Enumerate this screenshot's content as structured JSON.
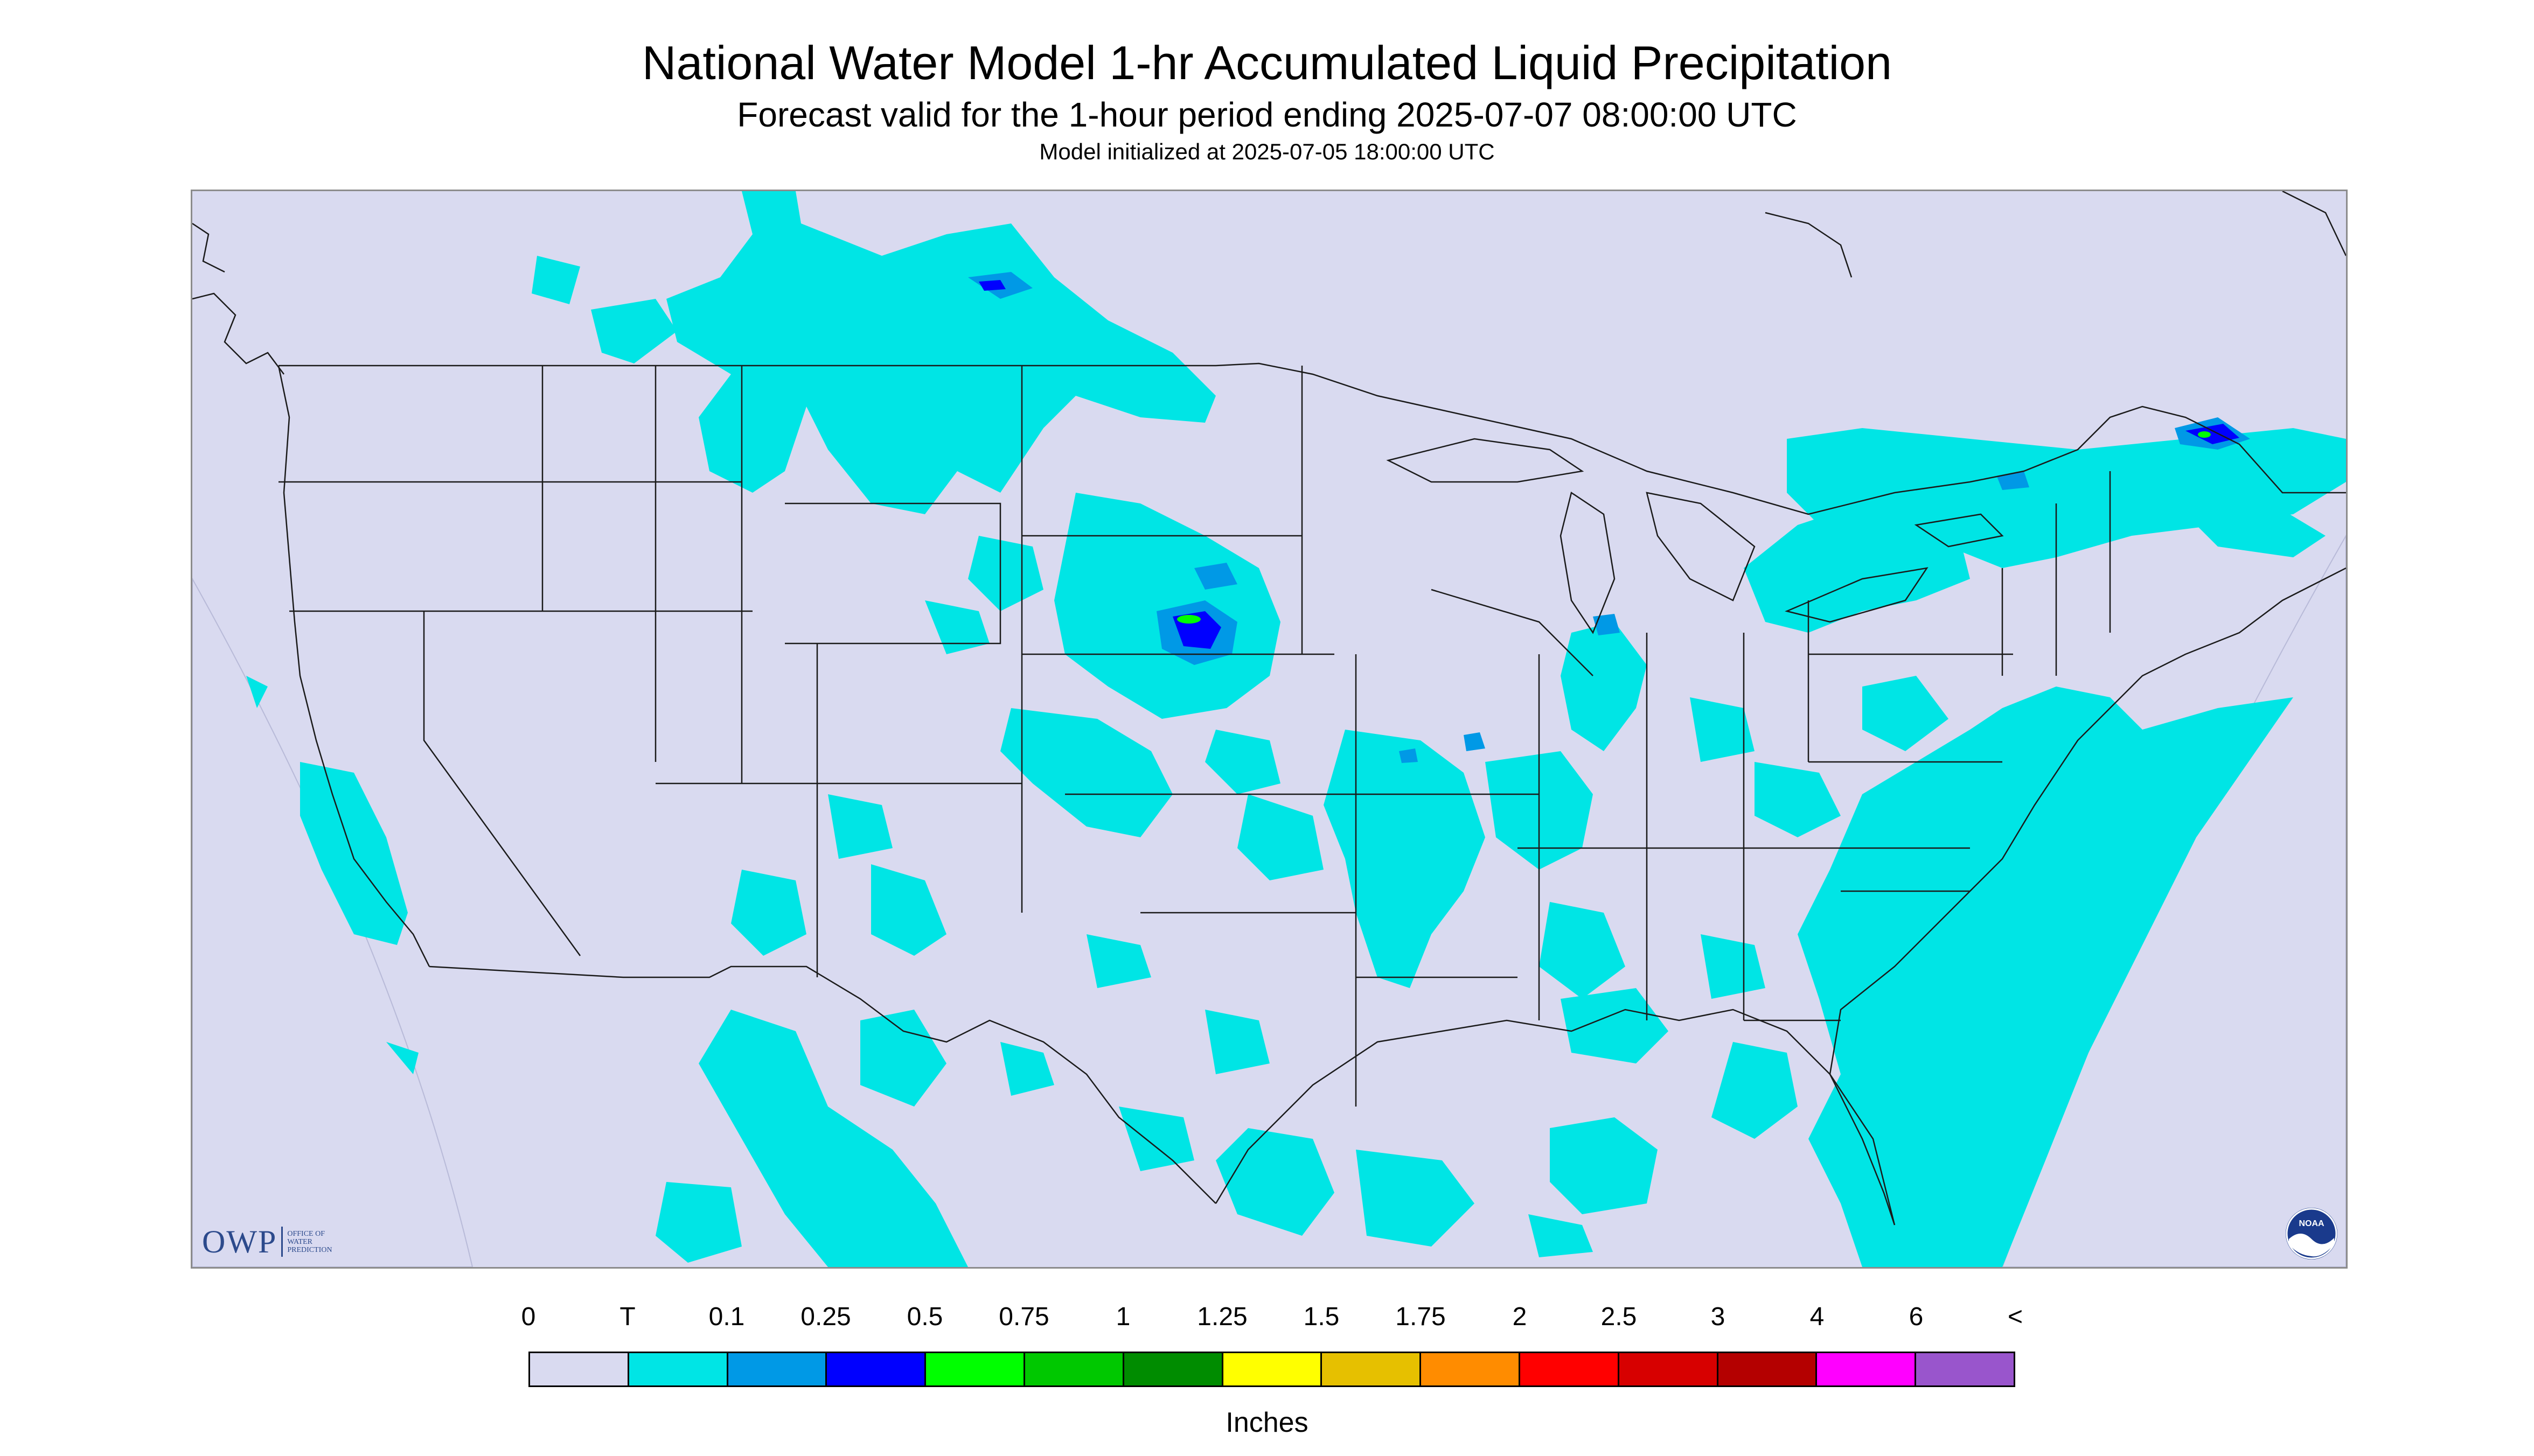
{
  "header": {
    "title": "National Water Model 1-hr Accumulated Liquid Precipitation",
    "subtitle": "Forecast valid for the 1-hour period ending 2025-07-07 08:00:00 UTC",
    "init": "Model initialized at 2025-07-05 18:00:00 UTC"
  },
  "map": {
    "background_color": "#d9daf0",
    "land_color": "#d9daf0",
    "outside_color": "#d9daf0",
    "border_color": "#1a1a1a",
    "precip_light_color": "#00e5e5",
    "precip_mid_color": "#0099e6",
    "precip_heavy_color": "#0000ff",
    "precip_green_color": "#00ff00"
  },
  "logos": {
    "owp_text": "OWP",
    "owp_office": [
      "OFFICE OF",
      "WATER",
      "PREDICTION"
    ],
    "noaa_text": "NOAA"
  },
  "legend": {
    "labels": [
      "0",
      "T",
      "0.1",
      "0.25",
      "0.5",
      "0.75",
      "1",
      "1.25",
      "1.5",
      "1.75",
      "2",
      "2.5",
      "3",
      "4",
      "6",
      "<"
    ],
    "colors": [
      "#d9daf0",
      "#00e5e5",
      "#0099e6",
      "#0000ff",
      "#00ff00",
      "#00c800",
      "#008c00",
      "#ffff00",
      "#e6c000",
      "#ff8c00",
      "#ff0000",
      "#d70000",
      "#b40000",
      "#ff00ff",
      "#9955cc"
    ],
    "units": "Inches"
  }
}
